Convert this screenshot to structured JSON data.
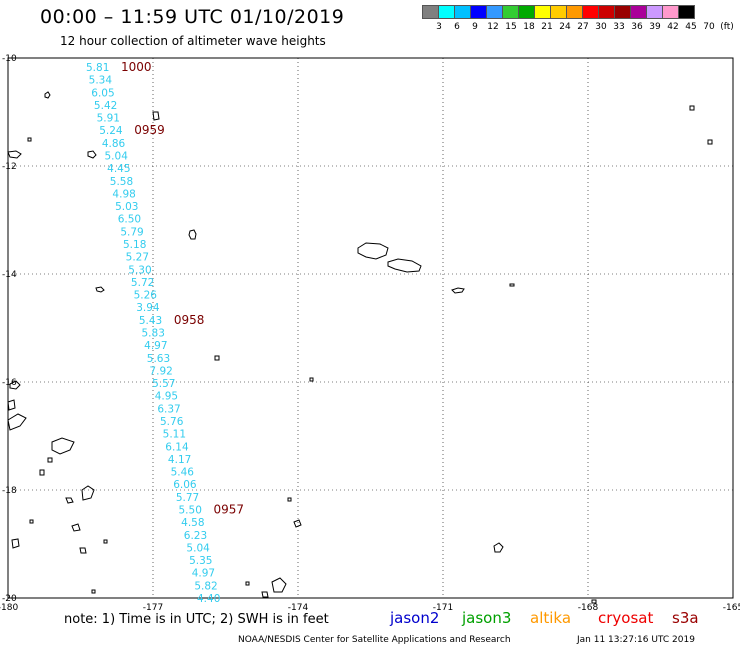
{
  "header": {
    "title": "00:00 – 11:59 UTC 01/10/2019",
    "subtitle": "12 hour collection of altimeter wave heights"
  },
  "legend": {
    "colors": [
      "#808080",
      "#00ffff",
      "#00c0ff",
      "#0000ff",
      "#3399ff",
      "#33cc33",
      "#00aa00",
      "#ffff00",
      "#ffcc00",
      "#ff9900",
      "#ff0000",
      "#cc0000",
      "#990000",
      "#aa0099",
      "#cc99ff",
      "#ff99cc",
      "#000000"
    ],
    "labels": [
      "3",
      "6",
      "9",
      "12",
      "15",
      "18",
      "21",
      "24",
      "27",
      "30",
      "33",
      "36",
      "39",
      "42",
      "45",
      "70",
      "(ft)"
    ]
  },
  "map": {
    "lon_range": [
      -180,
      -165
    ],
    "lat_range": [
      -20,
      -10
    ],
    "x_ticks": [
      "-180",
      "-177",
      "-174",
      "-171",
      "-168",
      "-165"
    ],
    "y_ticks": [
      "-10",
      "-12",
      "-14",
      "-16",
      "-18",
      "-20"
    ],
    "track_color": "#33ccee",
    "time_color": "#7a0000",
    "wave_heights": [
      "5.81",
      "5.34",
      "6.05",
      "5.42",
      "5.91",
      "5.24",
      "4.86",
      "5.04",
      "4.45",
      "5.58",
      "4.98",
      "5.03",
      "6.50",
      "5.79",
      "5.18",
      "5.27",
      "5.30",
      "5.72",
      "5.26",
      "3.94",
      "5.43",
      "5.83",
      "4.97",
      "5.63",
      "7.92",
      "5.57",
      "4.95",
      "6.37",
      "5.76",
      "5.11",
      "6.14",
      "4.17",
      "5.46",
      "6.06",
      "5.77",
      "5.50",
      "4.58",
      "6.23",
      "5.04",
      "5.35",
      "4.97",
      "5.82",
      "4.40"
    ],
    "time_labels": [
      {
        "text": "1000",
        "after_index": 0
      },
      {
        "text": "0959",
        "after_index": 5
      },
      {
        "text": "0958",
        "after_index": 20
      },
      {
        "text": "0957",
        "after_index": 35
      }
    ]
  },
  "footer": {
    "note": "note: 1) Time is in UTC; 2) SWH is in feet",
    "satellites": [
      {
        "name": "jason2",
        "color": "#0000cc"
      },
      {
        "name": "jason3",
        "color": "#00a000"
      },
      {
        "name": "altika",
        "color": "#ff9900"
      },
      {
        "name": "cryosat",
        "color": "#ee0000"
      },
      {
        "name": "s3a",
        "color": "#990000"
      }
    ],
    "credit": "NOAA/NESDIS Center for Satellite Applications and Research",
    "timestamp": "Jan 11 13:27:16 UTC 2019"
  }
}
